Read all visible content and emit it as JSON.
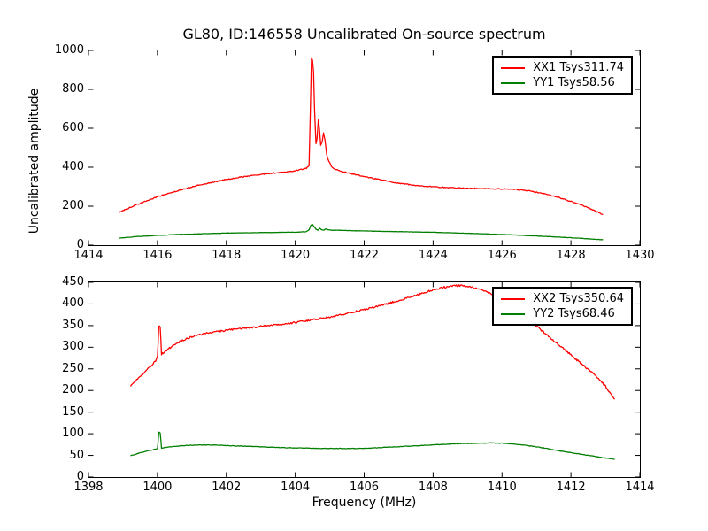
{
  "chart_data": [
    {
      "type": "line",
      "subplot": "top",
      "title": "GL80, ID:146558 Uncalibrated On-source spectrum",
      "xlabel": "",
      "ylabel": "Uncalibrated amplitude",
      "xlim": [
        1414,
        1430
      ],
      "ylim": [
        0,
        1000
      ],
      "xticks": [
        1414,
        1416,
        1418,
        1420,
        1422,
        1424,
        1426,
        1428,
        1430
      ],
      "yticks": [
        0,
        200,
        400,
        600,
        800,
        1000
      ],
      "grid": false,
      "legend_position": "upper right",
      "series": [
        {
          "name": "XX1 Tsys311.74",
          "color": "#ff0000",
          "noise": 2.5,
          "points": [
            [
              1414.88,
              168
            ],
            [
              1415.1,
              185
            ],
            [
              1415.4,
              208
            ],
            [
              1415.7,
              228
            ],
            [
              1416.0,
              248
            ],
            [
              1416.4,
              270
            ],
            [
              1416.8,
              290
            ],
            [
              1417.2,
              308
            ],
            [
              1417.6,
              323
            ],
            [
              1418.0,
              337
            ],
            [
              1418.4,
              349
            ],
            [
              1418.8,
              359
            ],
            [
              1419.2,
              367
            ],
            [
              1419.6,
              374
            ],
            [
              1419.9,
              379
            ],
            [
              1420.1,
              386
            ],
            [
              1420.22,
              391
            ],
            [
              1420.32,
              394
            ],
            [
              1420.4,
              405
            ],
            [
              1420.44,
              720
            ],
            [
              1420.47,
              964
            ],
            [
              1420.5,
              950
            ],
            [
              1420.53,
              890
            ],
            [
              1420.56,
              700
            ],
            [
              1420.6,
              520
            ],
            [
              1420.63,
              545
            ],
            [
              1420.67,
              643
            ],
            [
              1420.7,
              600
            ],
            [
              1420.74,
              515
            ],
            [
              1420.78,
              530
            ],
            [
              1420.82,
              575
            ],
            [
              1420.86,
              545
            ],
            [
              1420.91,
              468
            ],
            [
              1420.97,
              433
            ],
            [
              1421.05,
              405
            ],
            [
              1421.15,
              390
            ],
            [
              1421.3,
              380
            ],
            [
              1421.5,
              372
            ],
            [
              1421.8,
              360
            ],
            [
              1422.1,
              349
            ],
            [
              1422.5,
              334
            ],
            [
              1423.0,
              318
            ],
            [
              1423.5,
              307
            ],
            [
              1424.0,
              300
            ],
            [
              1424.5,
              295
            ],
            [
              1425.0,
              292
            ],
            [
              1425.5,
              290
            ],
            [
              1426.0,
              289
            ],
            [
              1426.4,
              286
            ],
            [
              1426.8,
              278
            ],
            [
              1427.2,
              265
            ],
            [
              1427.6,
              247
            ],
            [
              1428.0,
              224
            ],
            [
              1428.4,
              199
            ],
            [
              1428.7,
              176
            ],
            [
              1428.93,
              157
            ]
          ]
        },
        {
          "name": "YY1 Tsys58.56",
          "color": "#007f00",
          "noise": 0.8,
          "points": [
            [
              1414.88,
              36
            ],
            [
              1415.4,
              44
            ],
            [
              1416.0,
              50
            ],
            [
              1416.6,
              55
            ],
            [
              1417.2,
              58
            ],
            [
              1418.0,
              62
            ],
            [
              1418.8,
              64
            ],
            [
              1419.6,
              66
            ],
            [
              1420.1,
              67
            ],
            [
              1420.3,
              69
            ],
            [
              1420.4,
              78
            ],
            [
              1420.45,
              102
            ],
            [
              1420.5,
              106
            ],
            [
              1420.55,
              95
            ],
            [
              1420.6,
              81
            ],
            [
              1420.66,
              77
            ],
            [
              1420.71,
              87
            ],
            [
              1420.76,
              80
            ],
            [
              1420.82,
              76
            ],
            [
              1420.88,
              83
            ],
            [
              1420.95,
              79
            ],
            [
              1421.05,
              77
            ],
            [
              1421.3,
              76
            ],
            [
              1421.7,
              74
            ],
            [
              1422.2,
              72
            ],
            [
              1422.8,
              70
            ],
            [
              1423.4,
              68
            ],
            [
              1424.0,
              66
            ],
            [
              1424.6,
              63
            ],
            [
              1425.2,
              60
            ],
            [
              1425.8,
              56
            ],
            [
              1426.4,
              52
            ],
            [
              1427.0,
              47
            ],
            [
              1427.6,
              42
            ],
            [
              1428.2,
              36
            ],
            [
              1428.6,
              31
            ],
            [
              1428.93,
              28
            ]
          ]
        }
      ]
    },
    {
      "type": "line",
      "subplot": "bottom",
      "title": "",
      "xlabel": "Frequency (MHz)",
      "ylabel": "",
      "xlim": [
        1398,
        1414
      ],
      "ylim": [
        0,
        450
      ],
      "xticks": [
        1398,
        1400,
        1402,
        1404,
        1406,
        1408,
        1410,
        1412,
        1414
      ],
      "yticks": [
        0,
        50,
        100,
        150,
        200,
        250,
        300,
        350,
        400,
        450
      ],
      "grid": false,
      "legend_position": "upper right",
      "series": [
        {
          "name": "XX2 Tsys350.64",
          "color": "#ff0000",
          "noise": 2.0,
          "points": [
            [
              1399.22,
              210
            ],
            [
              1399.45,
              228
            ],
            [
              1399.7,
              248
            ],
            [
              1399.95,
              268
            ],
            [
              1400.0,
              277
            ],
            [
              1400.04,
              349
            ],
            [
              1400.08,
              347
            ],
            [
              1400.12,
              284
            ],
            [
              1400.35,
              298
            ],
            [
              1400.6,
              311
            ],
            [
              1400.85,
              320
            ],
            [
              1401.1,
              327
            ],
            [
              1401.5,
              333
            ],
            [
              1401.9,
              338
            ],
            [
              1402.3,
              342
            ],
            [
              1402.7,
              345
            ],
            [
              1403.1,
              349
            ],
            [
              1403.5,
              352
            ],
            [
              1403.9,
              356
            ],
            [
              1404.3,
              361
            ],
            [
              1404.7,
              366
            ],
            [
              1405.1,
              371
            ],
            [
              1405.5,
              378
            ],
            [
              1405.9,
              385
            ],
            [
              1406.3,
              393
            ],
            [
              1406.7,
              401
            ],
            [
              1407.1,
              410
            ],
            [
              1407.5,
              420
            ],
            [
              1407.9,
              430
            ],
            [
              1408.2,
              437
            ],
            [
              1408.5,
              441
            ],
            [
              1408.8,
              443
            ],
            [
              1409.1,
              440
            ],
            [
              1409.4,
              433
            ],
            [
              1409.7,
              423
            ],
            [
              1410.0,
              408
            ],
            [
              1410.3,
              391
            ],
            [
              1410.7,
              368
            ],
            [
              1411.1,
              342
            ],
            [
              1411.5,
              315
            ],
            [
              1411.9,
              289
            ],
            [
              1412.3,
              262
            ],
            [
              1412.7,
              235
            ],
            [
              1413.0,
              210
            ],
            [
              1413.27,
              180
            ]
          ]
        },
        {
          "name": "YY2 Tsys68.46",
          "color": "#007f00",
          "noise": 0.6,
          "points": [
            [
              1399.22,
              49
            ],
            [
              1399.5,
              56
            ],
            [
              1399.8,
              62
            ],
            [
              1400.0,
              65
            ],
            [
              1400.04,
              104
            ],
            [
              1400.08,
              102
            ],
            [
              1400.12,
              67
            ],
            [
              1400.4,
              70
            ],
            [
              1400.8,
              73
            ],
            [
              1401.2,
              74
            ],
            [
              1401.7,
              74
            ],
            [
              1402.2,
              72
            ],
            [
              1402.7,
              71
            ],
            [
              1403.2,
              69
            ],
            [
              1403.7,
              68
            ],
            [
              1404.2,
              67
            ],
            [
              1404.7,
              66
            ],
            [
              1405.2,
              66
            ],
            [
              1405.7,
              66
            ],
            [
              1406.2,
              67
            ],
            [
              1406.7,
              69
            ],
            [
              1407.2,
              71
            ],
            [
              1407.7,
              73
            ],
            [
              1408.2,
              75
            ],
            [
              1408.7,
              77
            ],
            [
              1409.2,
              78
            ],
            [
              1409.7,
              79
            ],
            [
              1410.1,
              78
            ],
            [
              1410.5,
              75
            ],
            [
              1410.9,
              71
            ],
            [
              1411.3,
              66
            ],
            [
              1411.7,
              60
            ],
            [
              1412.1,
              55
            ],
            [
              1412.5,
              50
            ],
            [
              1412.9,
              45
            ],
            [
              1413.27,
              41
            ]
          ]
        }
      ]
    }
  ]
}
